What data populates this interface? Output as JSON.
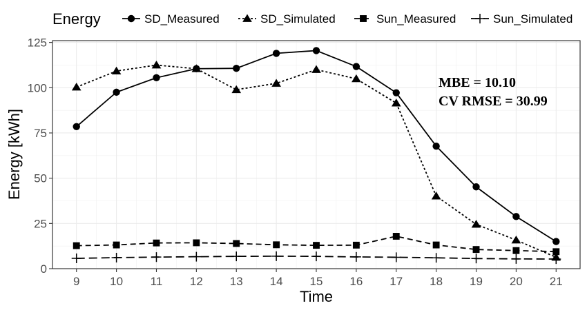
{
  "chart_data": {
    "type": "line",
    "title": "",
    "xlabel": "Time",
    "ylabel": "Energy [kWh]",
    "legend_title": "Energy",
    "legend_position": "top",
    "grid": true,
    "x": [
      9,
      10,
      11,
      12,
      13,
      14,
      15,
      16,
      17,
      18,
      19,
      20,
      21
    ],
    "xlim": [
      8.4,
      21.6
    ],
    "ylim": [
      0,
      126
    ],
    "yticks": [
      0,
      25,
      50,
      75,
      100,
      125
    ],
    "series": [
      {
        "name": "SD_Measured",
        "line": "solid",
        "marker": "circle",
        "values": [
          78.5,
          97.5,
          105.5,
          110.5,
          110.7,
          119,
          120.5,
          111.7,
          97.2,
          67.7,
          45.2,
          28.8,
          15
        ]
      },
      {
        "name": "SD_Simulated",
        "line": "dotted",
        "marker": "triangle",
        "values": [
          100.3,
          109.2,
          112.5,
          110.5,
          98.9,
          102.4,
          110,
          104.9,
          91.5,
          40.1,
          24.5,
          15.8,
          6.3
        ]
      },
      {
        "name": "Sun_Measured",
        "line": "dashed",
        "marker": "square",
        "values": [
          12.7,
          13.1,
          14.2,
          14.3,
          13.9,
          13.2,
          12.9,
          13,
          17.9,
          13.1,
          10.6,
          10,
          9.4
        ]
      },
      {
        "name": "Sun_Simulated",
        "line": "longdash",
        "marker": "plus",
        "values": [
          5.7,
          6.1,
          6.4,
          6.6,
          6.8,
          6.9,
          6.8,
          6.5,
          6.3,
          6,
          5.6,
          5.4,
          5.3
        ]
      }
    ],
    "annotations": [
      "MBE = 10.10",
      "CV RMSE = 30.99"
    ]
  }
}
